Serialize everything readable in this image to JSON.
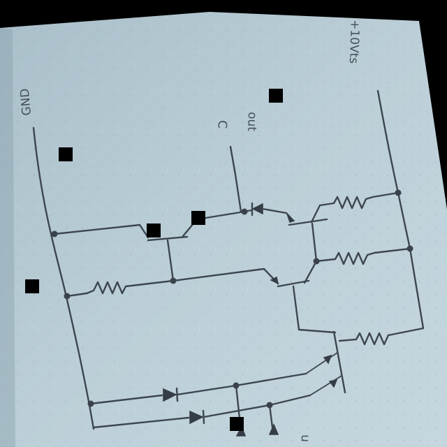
{
  "labels": {
    "gnd": "GND",
    "vcc": "+10Vts",
    "out_letter": "C",
    "out_word": "out",
    "bottom_right": "u"
  },
  "colors": {
    "paper": "#b7cad3",
    "ink": "#3d4650",
    "redaction": "#000000"
  }
}
